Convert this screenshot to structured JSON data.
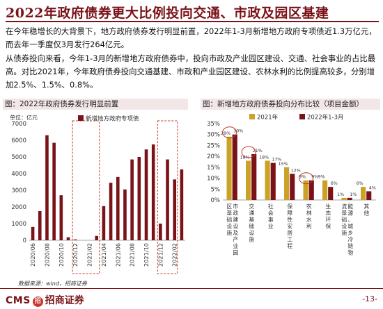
{
  "title": "2022年政府债券更大比例投向交通、市政及园区基建",
  "paragraphs": [
    "在今年稳增长的大背景下，地方政府债券发行明显前置，2022年1-3月新增地方政府专项债近1.3万亿元，而去年一季度仅3月发行264亿元。",
    "从债券投向来看，今年1-3月的新增地方政府债券中，投向市政及产业园区建设、交通、社会事业的占比最高。对比2021年，今年政府债券投向交通基建、市政和产业园区建设、农林水利的比例提高较多，分别增加2.5%、1.5%、0.8%。"
  ],
  "panels": {
    "left_title": "图：2022年政府债券发行明显前置",
    "right_title": "图：新增地方政府债券投向分布比较（项目金额）"
  },
  "source": "数据来源：wind，招商证券",
  "footer": {
    "brand": "CMS",
    "badge": "招",
    "brand_cn": "招商证券",
    "page": "-13-"
  },
  "colors": {
    "accent": "#7a1218",
    "bar_dark": "#7a1218",
    "bar_gold": "#c9a227",
    "highlight_box": "#c0392b"
  },
  "chart_data": [
    {
      "type": "bar",
      "title": "图：2022年政府债券发行明显前置",
      "ylabel": "单位：亿元",
      "ylim": [
        0,
        7000
      ],
      "yticks": [
        0,
        1000,
        2000,
        3000,
        4000,
        5000,
        6000,
        7000
      ],
      "categories": [
        "2020/06",
        "2020/07",
        "2020/08",
        "2020/09",
        "2020/10",
        "2020/11",
        "2020/12",
        "2021/01",
        "2021/02",
        "2021/03",
        "2021/04",
        "2021/05",
        "2021/06",
        "2021/07",
        "2021/08",
        "2021/09",
        "2021/10",
        "2021/11",
        "2021/12",
        "2022/01",
        "2022/02",
        "2022/03"
      ],
      "x_tick_labels": [
        "2020/06",
        "2020/08",
        "2020/10",
        "2020/12",
        "2021/02",
        "2021/04",
        "2021/06",
        "2021/08",
        "2021/10",
        "2021/12",
        "2022/02"
      ],
      "series": [
        {
          "name": "新增地方政府专项债",
          "values": [
            800,
            1750,
            6300,
            5850,
            2700,
            180,
            50,
            0,
            0,
            260,
            2050,
            3450,
            3800,
            3050,
            4850,
            5000,
            5450,
            5750,
            1000,
            4850,
            3650,
            4250
          ]
        }
      ],
      "highlight_ranges": [
        [
          6,
          9
        ],
        [
          18,
          20
        ]
      ]
    },
    {
      "type": "bar",
      "title": "图：新增地方政府债券投向分布比较（项目金额）",
      "ylim": [
        0,
        35
      ],
      "ytick_labels": [
        "0%",
        "5%",
        "10%",
        "15%",
        "20%",
        "25%",
        "30%",
        "35%"
      ],
      "yticks": [
        0,
        5,
        10,
        15,
        20,
        25,
        30,
        35
      ],
      "categories": [
        "市政建设及产业园区基础设施",
        "交通基础设施",
        "社会事业",
        "保障性安居工程",
        "农林水利",
        "生态环保",
        "能源、城乡冷链物流基础设施",
        "其他"
      ],
      "category_labels": [
        "市政建设及产业园区基础设施",
        "交通基础设施",
        "社会事业",
        "保障性安居工程",
        "农林水利",
        "生态环保",
        "能源、城乡冷链物流基础设施",
        "其他"
      ],
      "series": [
        {
          "name": "2021年",
          "values": [
            29,
            18,
            18,
            15,
            9,
            9,
            1,
            6
          ]
        },
        {
          "name": "2022年1-3月",
          "values": [
            30,
            21,
            17,
            12,
            9,
            6,
            1,
            4
          ]
        }
      ],
      "data_labels": [
        [
          "29%",
          "18%",
          "18%",
          "15%",
          "9%",
          "9%",
          "1%",
          "6%"
        ],
        [
          "30%",
          "21%",
          "17%",
          "12%",
          "9%",
          "6%",
          "1%",
          "4%"
        ]
      ],
      "circled_categories": [
        "市政建设及产业园区基础设施",
        "交通基础设施",
        "农林水利"
      ]
    }
  ]
}
